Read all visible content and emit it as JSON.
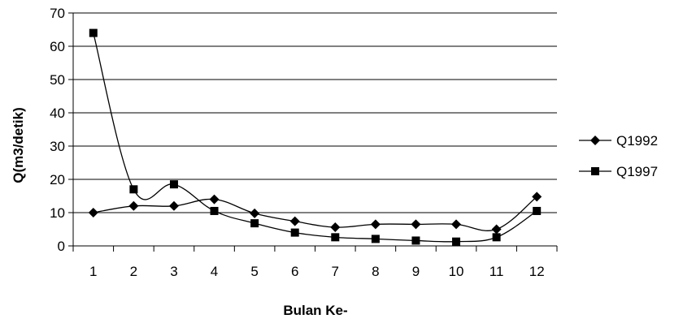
{
  "chart_data": {
    "type": "line",
    "title": "",
    "xlabel": "Bulan Ke-",
    "ylabel": "Q(m3/detik)",
    "categories": [
      "1",
      "2",
      "3",
      "4",
      "5",
      "6",
      "7",
      "8",
      "9",
      "10",
      "11",
      "12"
    ],
    "ylim": [
      0,
      70
    ],
    "yticks": [
      "0",
      "10",
      "20",
      "30",
      "40",
      "50",
      "60",
      "70"
    ],
    "grid": true,
    "legend_position": "right",
    "series": [
      {
        "name": "Q1992",
        "marker": "diamond",
        "color": "#000000",
        "values": [
          10,
          12,
          12,
          14,
          9.8,
          7.4,
          5.6,
          6.5,
          6.5,
          6.5,
          5,
          14.8
        ]
      },
      {
        "name": "Q1997",
        "marker": "square",
        "color": "#000000",
        "values": [
          64,
          17,
          18.5,
          10.5,
          6.8,
          4,
          2.6,
          2.1,
          1.6,
          1.3,
          2.6,
          10.5
        ]
      }
    ]
  }
}
